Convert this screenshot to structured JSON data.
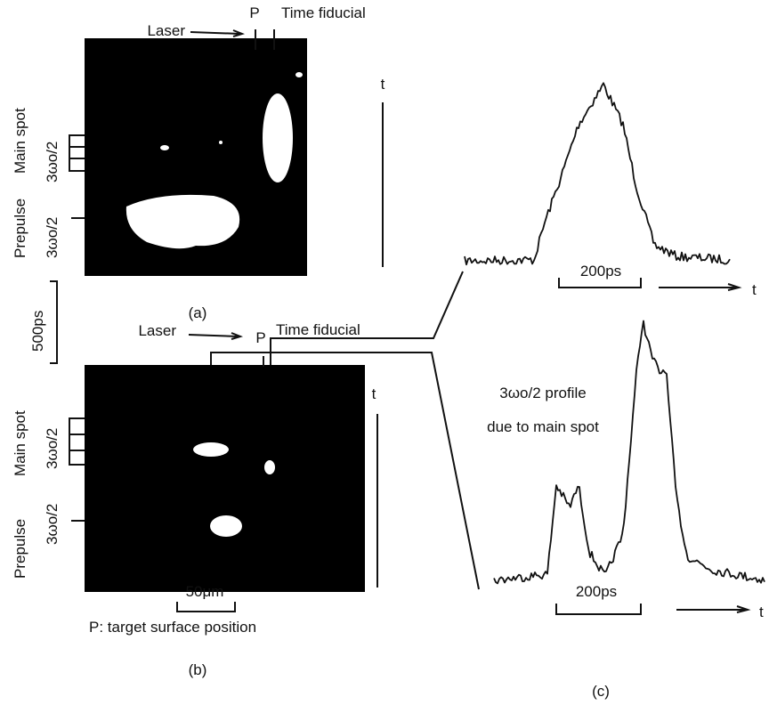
{
  "panel_a": {
    "label": "(a)",
    "laser": "Laser",
    "p": "P",
    "fiducial": "Time fiducial",
    "prepulse": "Prepulse",
    "main_spot": "Main spot",
    "harmonic_main": "3ωo/2",
    "harmonic_prepulse": "3ωo/2",
    "time_axis": "t"
  },
  "time_scale": "500ps",
  "panel_b": {
    "label": "(b)",
    "laser": "Laser",
    "p": "P",
    "fiducial": "Time fiducial",
    "prepulse": "Prepulse",
    "main_spot": "Main spot",
    "harmonic_main": "3ωo/2",
    "harmonic_prepulse": "3ωo/2",
    "time_axis": "t",
    "scale": "50μm",
    "note": "P: target surface position"
  },
  "panel_c": {
    "label": "(c)",
    "upper": {
      "scale": "200ps",
      "time_axis": "t"
    },
    "lower": {
      "annotation": [
        "3ωo/2 profile",
        "due to main spot"
      ],
      "scale": "200ps",
      "time_axis": "t"
    }
  }
}
